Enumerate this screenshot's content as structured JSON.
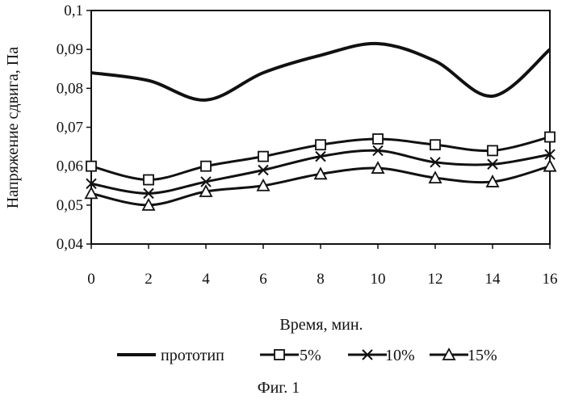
{
  "chart_data": {
    "type": "line",
    "xlabel": "Время, мин.",
    "ylabel": "Напряжение сдвига, Па",
    "x": [
      0,
      2,
      4,
      6,
      8,
      10,
      12,
      14,
      16
    ],
    "xlim": [
      0,
      16
    ],
    "ylim": [
      0.04,
      0.1
    ],
    "x_ticks": [
      "0",
      "2",
      "4",
      "6",
      "8",
      "10",
      "12",
      "14",
      "16"
    ],
    "y_ticks": [
      "0,04",
      "0,05",
      "0,06",
      "0,07",
      "0,08",
      "0,09",
      "0,1"
    ],
    "grid": "none",
    "legend_position": "bottom",
    "series": [
      {
        "name": "прототип",
        "marker": "none",
        "values": [
          0.084,
          0.082,
          0.077,
          0.084,
          0.0885,
          0.0915,
          0.087,
          0.078,
          0.09
        ]
      },
      {
        "name": "5%",
        "marker": "square",
        "values": [
          0.06,
          0.0565,
          0.06,
          0.0625,
          0.0655,
          0.067,
          0.0655,
          0.064,
          0.0675
        ]
      },
      {
        "name": "10%",
        "marker": "x",
        "values": [
          0.0555,
          0.053,
          0.056,
          0.059,
          0.0625,
          0.064,
          0.061,
          0.0605,
          0.063
        ]
      },
      {
        "name": "15%",
        "marker": "triangle",
        "values": [
          0.053,
          0.05,
          0.0535,
          0.055,
          0.058,
          0.0595,
          0.057,
          0.056,
          0.06
        ]
      }
    ]
  },
  "caption": "Фиг. 1"
}
